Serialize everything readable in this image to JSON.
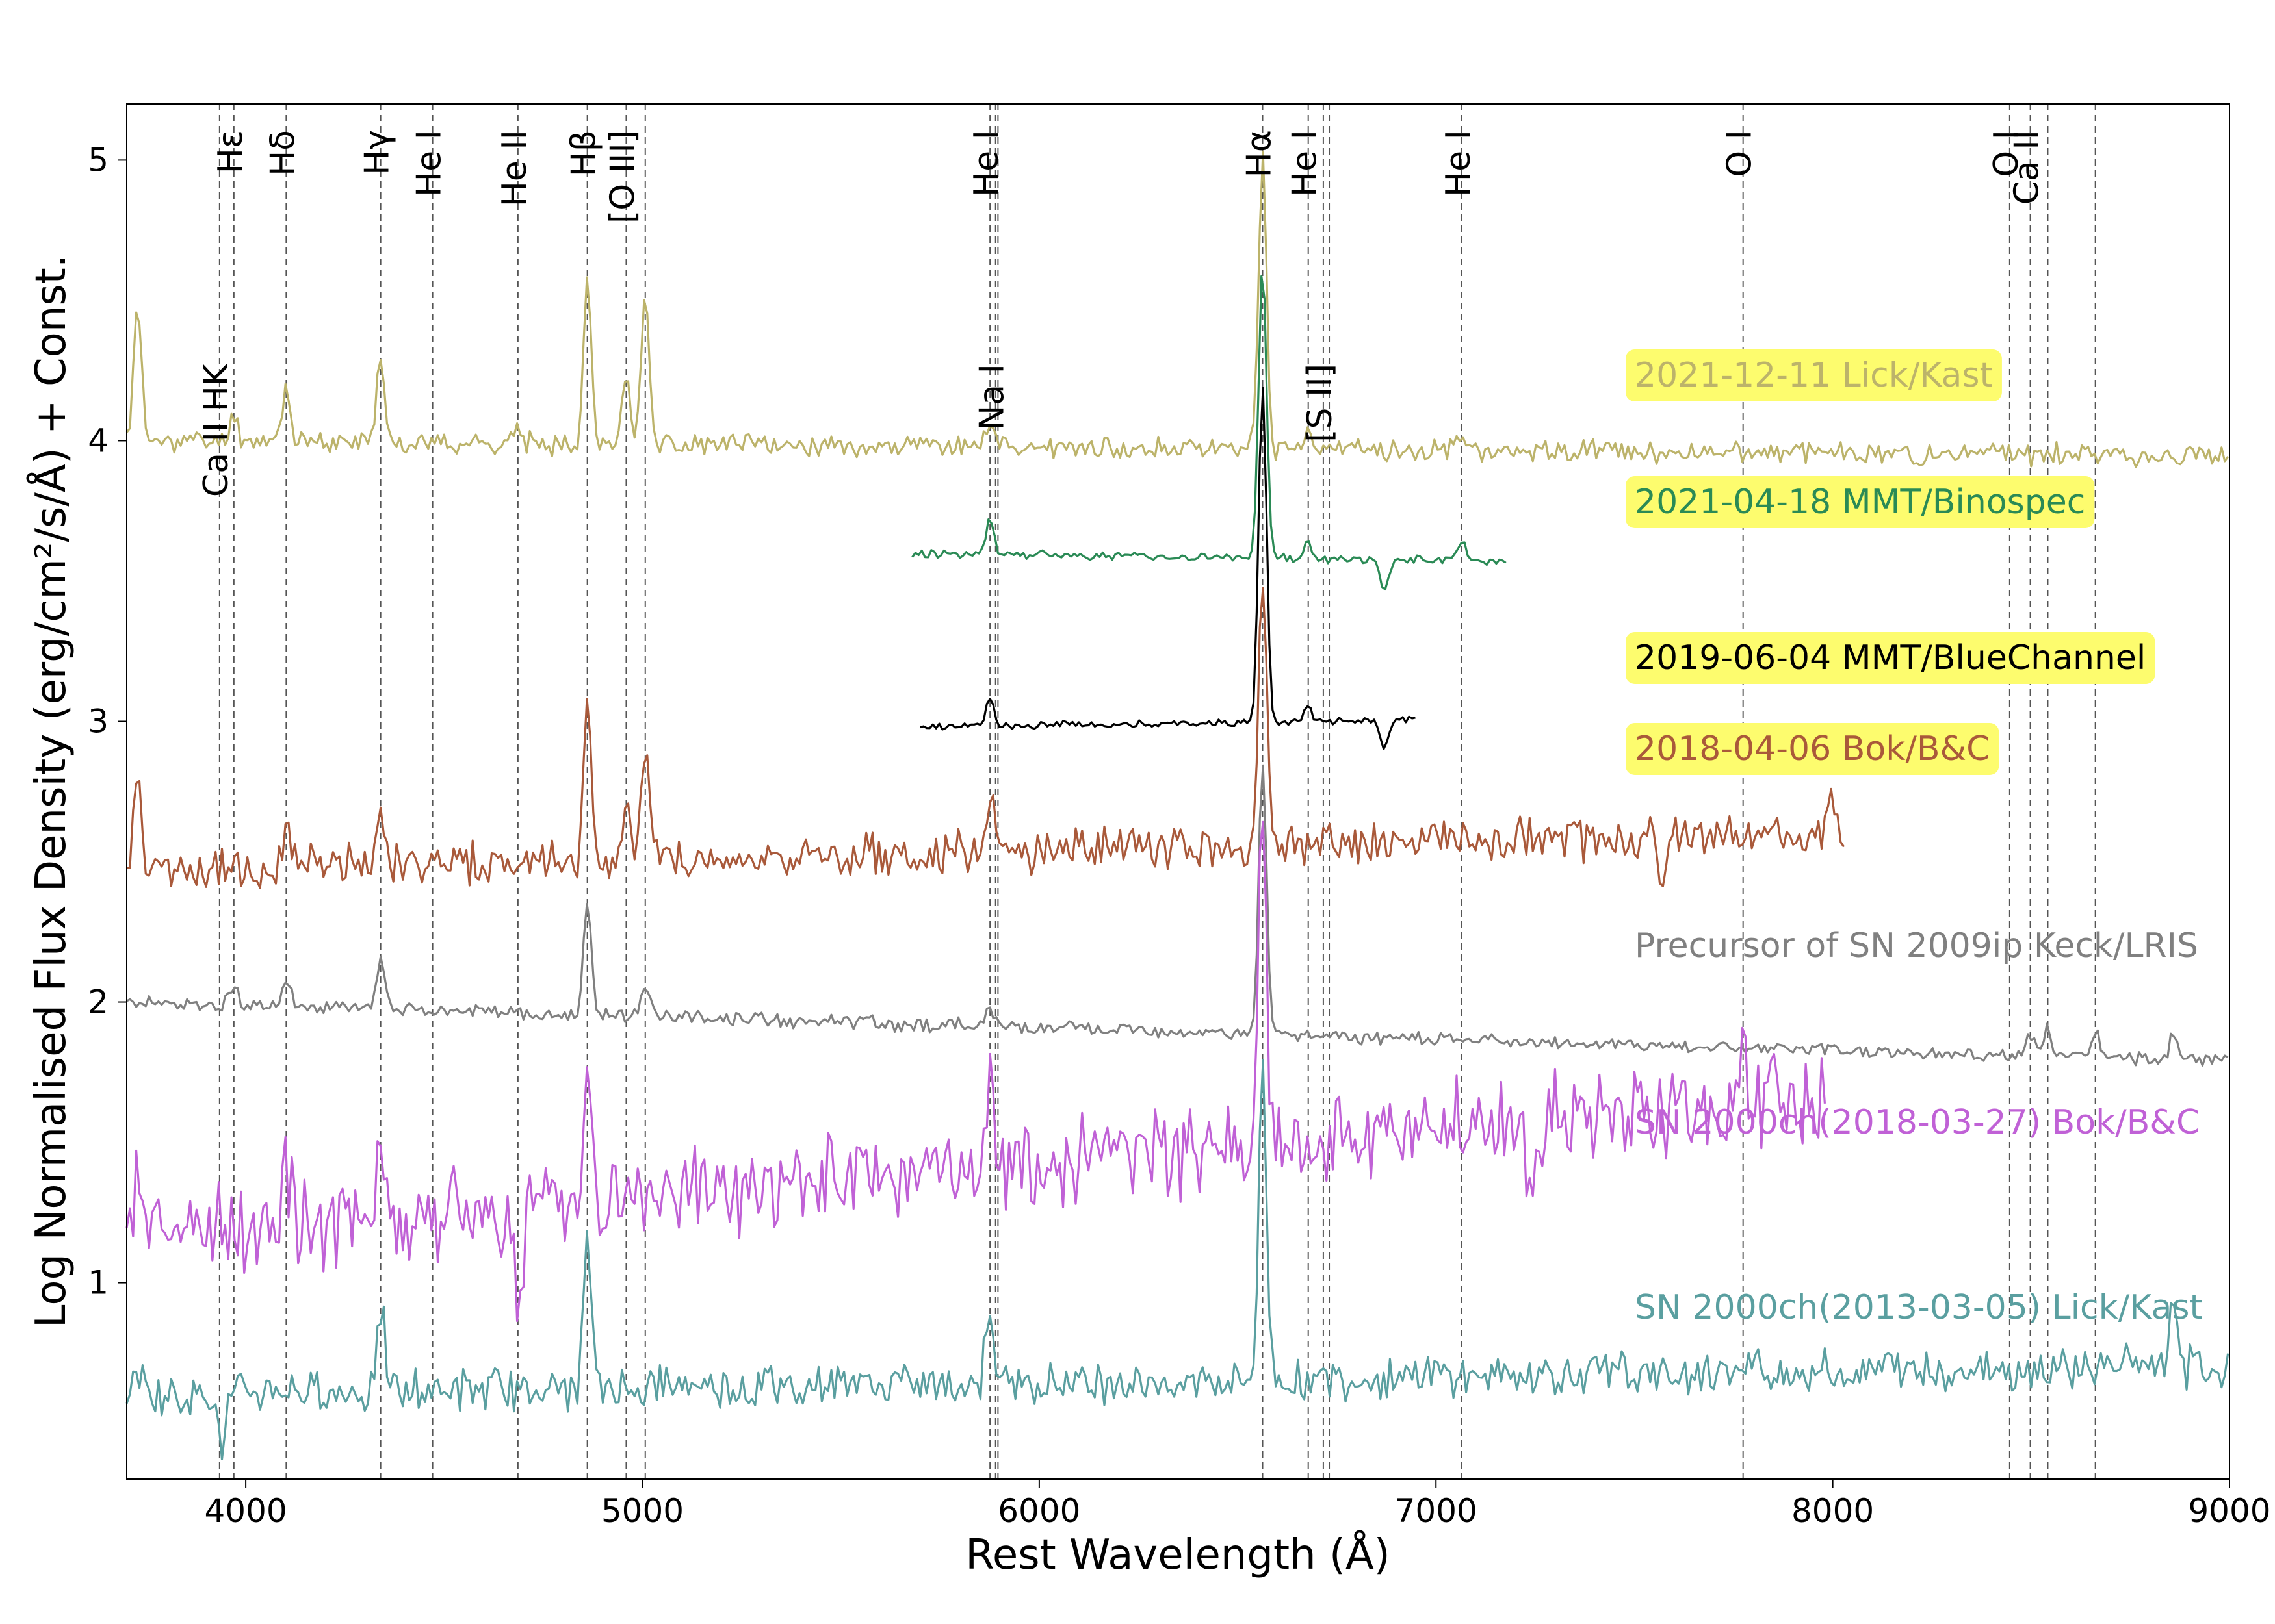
{
  "chart_data": {
    "type": "line",
    "title": "",
    "xlabel": "Rest Wavelength (Å)",
    "ylabel": "Log Normalised Flux Density (erg/cm²/s/Å) + Const.",
    "xlim": [
      3700,
      9000
    ],
    "ylim": [
      0.3,
      5.2
    ],
    "xticks": [
      4000,
      5000,
      6000,
      7000,
      8000,
      9000
    ],
    "yticks": [
      1,
      2,
      3,
      4,
      5
    ],
    "reference_lines": [
      {
        "label": "Ca II HK",
        "x": [
          3934,
          3969
        ],
        "label_row": "lower"
      },
      {
        "label": "Hε",
        "x": [
          3970
        ],
        "label_row": "upper"
      },
      {
        "label": "Hδ",
        "x": [
          4102
        ],
        "label_row": "upper"
      },
      {
        "label": "Hγ",
        "x": [
          4340
        ],
        "label_row": "upper"
      },
      {
        "label": "He I",
        "x": [
          4471
        ],
        "label_row": "upper"
      },
      {
        "label": "He II",
        "x": [
          4686
        ],
        "label_row": "upper"
      },
      {
        "label": "Hβ",
        "x": [
          4861
        ],
        "label_row": "upper"
      },
      {
        "label": "[O III]",
        "x": [
          4959,
          5007
        ],
        "label_row": "upper"
      },
      {
        "label": "He I",
        "x": [
          5876
        ],
        "label_row": "upper"
      },
      {
        "label": "Na I",
        "x": [
          5890,
          5896
        ],
        "label_row": "lower"
      },
      {
        "label": "Hα",
        "x": [
          6563
        ],
        "label_row": "upper"
      },
      {
        "label": "He I",
        "x": [
          6678
        ],
        "label_row": "upper"
      },
      {
        "label": "[S II]",
        "x": [
          6716,
          6731
        ],
        "label_row": "lower"
      },
      {
        "label": "He I",
        "x": [
          7065
        ],
        "label_row": "upper"
      },
      {
        "label": "O I",
        "x": [
          7774
        ],
        "label_row": "upper"
      },
      {
        "label": "O I",
        "x": [
          8446
        ],
        "label_row": "upper"
      },
      {
        "label": "Ca II",
        "x": [
          8498,
          8542,
          8662
        ],
        "label_row": "upper"
      }
    ],
    "series": [
      {
        "name": "2021-12-11 Lick/Kast",
        "color": "#bcb36a",
        "range": [
          3700,
          9000
        ],
        "base": 4.0,
        "noise": 0.03,
        "slope": -0.01,
        "seed": 11,
        "peaks": [
          [
            3727,
            0.48
          ],
          [
            3970,
            0.1
          ],
          [
            4102,
            0.2
          ],
          [
            4340,
            0.32
          ],
          [
            4686,
            0.05
          ],
          [
            4861,
            0.58
          ],
          [
            4959,
            0.25
          ],
          [
            5007,
            0.55
          ],
          [
            5876,
            0.1
          ],
          [
            6563,
            1.05
          ],
          [
            6678,
            0.05
          ],
          [
            7065,
            0.07
          ]
        ],
        "highlight": true
      },
      {
        "name": "2021-04-18 MMT/Binospec",
        "color": "#2a8a55",
        "range": [
          5680,
          7180
        ],
        "base": 3.6,
        "noise": 0.012,
        "slope": -0.02,
        "seed": 22,
        "peaks": [
          [
            5876,
            0.13
          ],
          [
            6563,
            1.05
          ],
          [
            6678,
            0.06
          ],
          [
            7065,
            0.07
          ]
        ],
        "dips": [
          [
            6870,
            0.12
          ]
        ],
        "highlight": true
      },
      {
        "name": "2019-06-04 MMT/BlueChannel",
        "color": "#000000",
        "range": [
          5700,
          6950
        ],
        "base": 2.98,
        "noise": 0.01,
        "slope": 0.02,
        "seed": 33,
        "peaks": [
          [
            5876,
            0.1
          ],
          [
            6563,
            1.2
          ],
          [
            6678,
            0.05
          ]
        ],
        "dips": [
          [
            6870,
            0.1
          ]
        ],
        "highlight": true
      },
      {
        "name": "2018-04-06 Bok/B&C",
        "color": "#a9593a",
        "range": [
          3700,
          8030
        ],
        "base": 2.47,
        "noise": 0.06,
        "slope": 0.03,
        "seed": 44,
        "peaks": [
          [
            3727,
            0.3
          ],
          [
            4102,
            0.15
          ],
          [
            4340,
            0.2
          ],
          [
            4861,
            0.5
          ],
          [
            4959,
            0.2
          ],
          [
            5007,
            0.4
          ],
          [
            5876,
            0.2
          ],
          [
            6563,
            0.95
          ],
          [
            8000,
            0.15
          ]
        ],
        "dips": [
          [
            7570,
            0.2
          ]
        ],
        "highlight": true
      },
      {
        "name": "Precursor of SN 2009ip Keck/LRIS",
        "color": "#808080",
        "range": [
          3700,
          9000
        ],
        "base": 2.0,
        "noise": 0.02,
        "slope": -0.04,
        "seed": 55,
        "peaks": [
          [
            3970,
            0.08
          ],
          [
            4102,
            0.1
          ],
          [
            4340,
            0.2
          ],
          [
            4861,
            0.4
          ],
          [
            5007,
            0.12
          ],
          [
            5876,
            0.06
          ],
          [
            6563,
            0.95
          ],
          [
            8498,
            0.07
          ],
          [
            8542,
            0.1
          ],
          [
            8662,
            0.1
          ],
          [
            8860,
            0.1
          ]
        ],
        "highlight": false
      },
      {
        "name": "SN 2000ch(2018-03-27) Bok/B&C",
        "color": "#c061d6",
        "range": [
          3700,
          7980
        ],
        "base": 1.15,
        "noise": 0.13,
        "slope": 0.12,
        "seed": 66,
        "peaks": [
          [
            3727,
            0.2
          ],
          [
            4102,
            0.25
          ],
          [
            4340,
            0.3
          ],
          [
            4861,
            0.55
          ],
          [
            5876,
            0.25
          ],
          [
            6563,
            1.2
          ],
          [
            7774,
            0.2
          ]
        ],
        "dips": [
          [
            4686,
            0.35
          ],
          [
            7240,
            0.3
          ]
        ],
        "highlight": false
      },
      {
        "name": "SN 2000ch(2013-03-05) Lick/Kast",
        "color": "#5a9fa0",
        "range": [
          3700,
          9000
        ],
        "base": 0.6,
        "noise": 0.06,
        "slope": 0.02,
        "seed": 77,
        "peaks": [
          [
            3727,
            0.1
          ],
          [
            4340,
            0.3
          ],
          [
            4861,
            0.4
          ],
          [
            5876,
            0.3
          ],
          [
            6563,
            1.1
          ],
          [
            8860,
            0.25
          ]
        ],
        "dips": [
          [
            3940,
            0.2
          ],
          [
            4861,
            -0.1
          ]
        ],
        "highlight": false
      }
    ]
  }
}
